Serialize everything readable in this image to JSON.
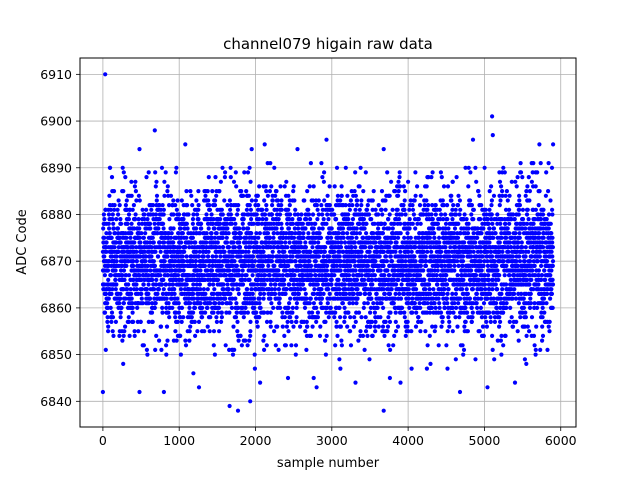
{
  "chart_data": {
    "type": "scatter",
    "title": "channel079 higain raw data",
    "xlabel": "sample number",
    "ylabel": "ADC Code",
    "xlim": [
      -300,
      6200
    ],
    "ylim": [
      6834.5,
      6913.5
    ],
    "x_ticks": [
      0,
      1000,
      2000,
      3000,
      4000,
      5000,
      6000
    ],
    "y_ticks": [
      6840,
      6850,
      6860,
      6870,
      6880,
      6890,
      6900,
      6910
    ],
    "grid": true,
    "marker_color": "#0000ff",
    "n_samples": 5900,
    "distribution": {
      "center": 6870,
      "spread": 7.5,
      "min": 6838,
      "max": 6910
    },
    "outliers": [
      {
        "x": 30,
        "y": 6910
      },
      {
        "x": 5100,
        "y": 6901
      },
      {
        "x": 680,
        "y": 6898
      },
      {
        "x": 5110,
        "y": 6897
      },
      {
        "x": 2930,
        "y": 6896
      },
      {
        "x": 4850,
        "y": 6896
      },
      {
        "x": 1080,
        "y": 6895
      },
      {
        "x": 2120,
        "y": 6895
      },
      {
        "x": 5720,
        "y": 6895
      },
      {
        "x": 5900,
        "y": 6895
      },
      {
        "x": 480,
        "y": 6894
      },
      {
        "x": 1950,
        "y": 6894
      },
      {
        "x": 2550,
        "y": 6894
      },
      {
        "x": 3680,
        "y": 6894
      },
      {
        "x": 5640,
        "y": 6891
      },
      {
        "x": 0,
        "y": 6842
      },
      {
        "x": 480,
        "y": 6842
      },
      {
        "x": 800,
        "y": 6842
      },
      {
        "x": 1260,
        "y": 6843
      },
      {
        "x": 2800,
        "y": 6843
      },
      {
        "x": 5040,
        "y": 6843
      },
      {
        "x": 4680,
        "y": 6842
      },
      {
        "x": 1660,
        "y": 6839
      },
      {
        "x": 1770,
        "y": 6838
      },
      {
        "x": 3680,
        "y": 6838
      },
      {
        "x": 1930,
        "y": 6840
      },
      {
        "x": 2060,
        "y": 6844
      },
      {
        "x": 3310,
        "y": 6844
      },
      {
        "x": 3900,
        "y": 6844
      },
      {
        "x": 5400,
        "y": 6844
      }
    ]
  }
}
